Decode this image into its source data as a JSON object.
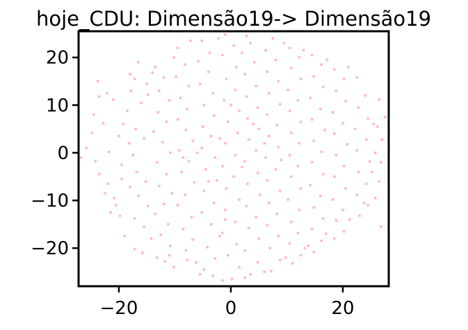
{
  "chart_data": {
    "type": "scatter",
    "title": "hoje_CDU: Dimensão19-> Dimensão19",
    "xlabel": "",
    "ylabel": "",
    "xlim": [
      -27.2,
      28.2
    ],
    "ylim": [
      -28.0,
      25.5
    ],
    "xticks": [
      {
        "value": -20,
        "label": "−20"
      },
      {
        "value": 0,
        "label": "0"
      },
      {
        "value": 20,
        "label": "20"
      }
    ],
    "yticks": [
      {
        "value": 20,
        "label": "20"
      },
      {
        "value": 10,
        "label": "10"
      },
      {
        "value": 0,
        "label": "0"
      },
      {
        "value": -10,
        "label": "−10"
      },
      {
        "value": -20,
        "label": "−20"
      }
    ],
    "grid": false,
    "legend": "none",
    "marker_color": "#ff6b6b",
    "marker_opacity": 0.45,
    "series": [
      {
        "points": [
          [
            -23.8,
            15.0
          ],
          [
            -22.1,
            12.5
          ],
          [
            -23.5,
            11.8
          ],
          [
            -21.0,
            11.2
          ],
          [
            -24.5,
            8.0
          ],
          [
            -22.8,
            6.2
          ],
          [
            -24.8,
            4.2
          ],
          [
            -25.8,
            1.0
          ],
          [
            -26.8,
            -1.0
          ],
          [
            -24.2,
            -1.8
          ],
          [
            -23.5,
            -4.5
          ],
          [
            -22.0,
            -6.5
          ],
          [
            -22.5,
            -8.5
          ],
          [
            -20.8,
            -9.5
          ],
          [
            -21.5,
            -12.5
          ],
          [
            -19.8,
            -13.2
          ],
          [
            -19.0,
            -17.5
          ],
          [
            -17.2,
            -20.2
          ],
          [
            -18.0,
            16.5
          ],
          [
            -17.2,
            15.5
          ],
          [
            -16.5,
            19.0
          ],
          [
            -15.0,
            14.5
          ],
          [
            -14.8,
            12.2
          ],
          [
            -16.0,
            10.5
          ],
          [
            -18.5,
            8.8
          ],
          [
            -19.2,
            6.0
          ],
          [
            -17.0,
            5.0
          ],
          [
            -15.5,
            3.0
          ],
          [
            -18.2,
            2.0
          ],
          [
            -17.5,
            -0.5
          ],
          [
            -19.5,
            -2.5
          ],
          [
            -16.8,
            -4.0
          ],
          [
            -15.2,
            -6.0
          ],
          [
            -18.0,
            -7.2
          ],
          [
            -16.5,
            -9.0
          ],
          [
            -14.8,
            -11.2
          ],
          [
            -17.2,
            -13.8
          ],
          [
            -15.5,
            -15.5
          ],
          [
            -14.2,
            -18.0
          ],
          [
            -15.8,
            -21.0
          ],
          [
            -13.2,
            -22.0
          ],
          [
            -13.5,
            18.0
          ],
          [
            -12.0,
            15.8
          ],
          [
            -12.8,
            13.0
          ],
          [
            -11.0,
            11.0
          ],
          [
            -13.0,
            8.5
          ],
          [
            -11.5,
            6.5
          ],
          [
            -13.8,
            4.5
          ],
          [
            -12.2,
            2.2
          ],
          [
            -10.8,
            0.0
          ],
          [
            -13.2,
            -2.0
          ],
          [
            -11.5,
            -4.5
          ],
          [
            -12.8,
            -7.0
          ],
          [
            -10.5,
            -8.5
          ],
          [
            -12.0,
            -10.8
          ],
          [
            -13.5,
            -12.8
          ],
          [
            -11.2,
            -15.0
          ],
          [
            -12.5,
            -17.2
          ],
          [
            -10.8,
            -19.5
          ],
          [
            -11.8,
            -22.8
          ],
          [
            -10.2,
            -24.0
          ],
          [
            -9.5,
            22.0
          ],
          [
            -8.2,
            18.5
          ],
          [
            -9.8,
            16.0
          ],
          [
            -7.5,
            14.0
          ],
          [
            -9.0,
            11.5
          ],
          [
            -7.8,
            9.2
          ],
          [
            -9.5,
            7.0
          ],
          [
            -8.0,
            4.8
          ],
          [
            -6.8,
            2.5
          ],
          [
            -9.2,
            0.5
          ],
          [
            -7.5,
            -1.8
          ],
          [
            -8.8,
            -4.0
          ],
          [
            -6.5,
            -6.2
          ],
          [
            -8.2,
            -8.8
          ],
          [
            -9.5,
            -11.0
          ],
          [
            -7.0,
            -13.5
          ],
          [
            -8.5,
            -16.0
          ],
          [
            -6.8,
            -18.2
          ],
          [
            -8.0,
            -20.5
          ],
          [
            -6.2,
            -23.0
          ],
          [
            -5.5,
            -25.5
          ],
          [
            -5.2,
            23.5
          ],
          [
            -3.8,
            21.0
          ],
          [
            -5.8,
            19.2
          ],
          [
            -4.0,
            17.0
          ],
          [
            -5.5,
            14.5
          ],
          [
            -3.2,
            12.5
          ],
          [
            -4.8,
            10.0
          ],
          [
            -3.0,
            7.8
          ],
          [
            -5.0,
            5.5
          ],
          [
            -3.5,
            3.5
          ],
          [
            -5.2,
            1.0
          ],
          [
            -2.8,
            -1.0
          ],
          [
            -4.5,
            -3.5
          ],
          [
            -2.5,
            -5.8
          ],
          [
            -4.8,
            -8.0
          ],
          [
            -3.0,
            -10.5
          ],
          [
            -5.2,
            -12.5
          ],
          [
            -3.5,
            -15.0
          ],
          [
            -2.0,
            -17.5
          ],
          [
            -4.2,
            -19.8
          ],
          [
            -2.8,
            -22.2
          ],
          [
            -4.8,
            -24.5
          ],
          [
            -1.5,
            -26.8
          ],
          [
            -1.0,
            24.8
          ],
          [
            0.5,
            22.5
          ],
          [
            -1.5,
            20.5
          ],
          [
            1.0,
            18.0
          ],
          [
            -0.8,
            15.5
          ],
          [
            0.8,
            13.2
          ],
          [
            -1.2,
            11.0
          ],
          [
            1.5,
            8.8
          ],
          [
            -0.5,
            6.5
          ],
          [
            1.2,
            4.2
          ],
          [
            -1.0,
            2.0
          ],
          [
            0.8,
            -0.5
          ],
          [
            -1.5,
            -2.8
          ],
          [
            0.5,
            -5.0
          ],
          [
            -0.8,
            -7.5
          ],
          [
            1.5,
            -9.8
          ],
          [
            -1.0,
            -12.0
          ],
          [
            0.8,
            -14.5
          ],
          [
            -1.5,
            -16.8
          ],
          [
            1.0,
            -19.2
          ],
          [
            -0.5,
            -21.5
          ],
          [
            1.5,
            -24.0
          ],
          [
            0.2,
            -26.5
          ],
          [
            3.5,
            23.0
          ],
          [
            2.0,
            21.0
          ],
          [
            4.2,
            19.0
          ],
          [
            2.5,
            16.5
          ],
          [
            4.5,
            14.0
          ],
          [
            2.8,
            11.8
          ],
          [
            4.8,
            9.5
          ],
          [
            3.0,
            7.2
          ],
          [
            5.0,
            5.0
          ],
          [
            3.2,
            2.8
          ],
          [
            4.5,
            0.5
          ],
          [
            2.5,
            -1.8
          ],
          [
            4.8,
            -4.2
          ],
          [
            3.0,
            -6.5
          ],
          [
            5.2,
            -8.8
          ],
          [
            2.8,
            -11.2
          ],
          [
            4.5,
            -13.5
          ],
          [
            3.2,
            -15.8
          ],
          [
            5.0,
            -18.0
          ],
          [
            2.5,
            -20.5
          ],
          [
            4.8,
            -23.0
          ],
          [
            3.5,
            -25.5
          ],
          [
            7.5,
            24.0
          ],
          [
            6.2,
            21.5
          ],
          [
            8.0,
            19.5
          ],
          [
            6.5,
            17.0
          ],
          [
            8.5,
            15.0
          ],
          [
            6.8,
            12.5
          ],
          [
            8.8,
            10.2
          ],
          [
            6.5,
            8.0
          ],
          [
            8.2,
            5.8
          ],
          [
            6.8,
            3.5
          ],
          [
            8.5,
            1.2
          ],
          [
            6.2,
            -1.0
          ],
          [
            8.0,
            -3.5
          ],
          [
            6.5,
            -5.8
          ],
          [
            8.8,
            -8.0
          ],
          [
            6.8,
            -10.5
          ],
          [
            8.2,
            -12.8
          ],
          [
            6.5,
            -15.2
          ],
          [
            8.5,
            -17.5
          ],
          [
            7.0,
            -20.0
          ],
          [
            8.8,
            -22.5
          ],
          [
            7.2,
            -24.8
          ],
          [
            10.5,
            22.0
          ],
          [
            12.2,
            20.0
          ],
          [
            10.8,
            17.8
          ],
          [
            12.5,
            15.5
          ],
          [
            10.2,
            13.2
          ],
          [
            12.0,
            11.0
          ],
          [
            10.5,
            8.8
          ],
          [
            12.5,
            6.5
          ],
          [
            10.8,
            4.2
          ],
          [
            12.2,
            2.0
          ],
          [
            10.5,
            -0.5
          ],
          [
            12.0,
            -2.8
          ],
          [
            10.8,
            -5.0
          ],
          [
            12.5,
            -7.5
          ],
          [
            10.2,
            -9.8
          ],
          [
            12.2,
            -12.0
          ],
          [
            10.8,
            -14.5
          ],
          [
            12.0,
            -16.8
          ],
          [
            10.5,
            -19.0
          ],
          [
            12.5,
            -21.5
          ],
          [
            11.0,
            -23.2
          ],
          [
            14.5,
            20.5
          ],
          [
            16.2,
            18.5
          ],
          [
            14.8,
            16.0
          ],
          [
            16.5,
            13.8
          ],
          [
            14.2,
            11.5
          ],
          [
            16.0,
            9.2
          ],
          [
            14.5,
            7.0
          ],
          [
            16.8,
            4.8
          ],
          [
            14.8,
            2.5
          ],
          [
            16.2,
            0.2
          ],
          [
            14.5,
            -2.0
          ],
          [
            16.5,
            -4.5
          ],
          [
            14.2,
            -6.8
          ],
          [
            16.0,
            -9.0
          ],
          [
            14.8,
            -11.5
          ],
          [
            16.5,
            -13.8
          ],
          [
            14.5,
            -16.0
          ],
          [
            16.2,
            -18.5
          ],
          [
            14.8,
            -20.8
          ],
          [
            13.8,
            -19.5
          ],
          [
            18.5,
            17.5
          ],
          [
            20.2,
            15.5
          ],
          [
            18.8,
            13.0
          ],
          [
            20.5,
            10.8
          ],
          [
            18.2,
            8.5
          ],
          [
            20.0,
            6.2
          ],
          [
            18.5,
            4.0
          ],
          [
            20.8,
            1.8
          ],
          [
            18.8,
            -0.5
          ],
          [
            20.2,
            -2.8
          ],
          [
            18.5,
            -5.0
          ],
          [
            20.5,
            -7.5
          ],
          [
            18.2,
            -9.8
          ],
          [
            20.0,
            -12.0
          ],
          [
            18.8,
            -14.2
          ],
          [
            20.2,
            -16.5
          ],
          [
            18.5,
            -18.0
          ],
          [
            22.5,
            15.8
          ],
          [
            24.0,
            12.0
          ],
          [
            22.8,
            9.5
          ],
          [
            24.5,
            7.2
          ],
          [
            22.2,
            5.0
          ],
          [
            24.2,
            2.8
          ],
          [
            22.5,
            0.5
          ],
          [
            24.8,
            -1.8
          ],
          [
            22.8,
            -4.0
          ],
          [
            24.2,
            -6.5
          ],
          [
            22.5,
            -8.8
          ],
          [
            24.5,
            -11.0
          ],
          [
            23.0,
            -13.2
          ],
          [
            26.5,
            11.2
          ],
          [
            25.5,
            6.0
          ],
          [
            27.5,
            7.5
          ],
          [
            26.2,
            5.5
          ],
          [
            27.0,
            2.8
          ],
          [
            25.8,
            0.0
          ],
          [
            26.8,
            -2.0
          ],
          [
            25.2,
            -4.0
          ],
          [
            26.5,
            -6.0
          ],
          [
            25.8,
            -9.5
          ],
          [
            26.8,
            -15.5
          ],
          [
            -20.0,
            3.5
          ],
          [
            -21.8,
            0.2
          ],
          [
            -19.5,
            -5.5
          ],
          [
            -20.5,
            -11.0
          ],
          [
            -17.8,
            13.0
          ],
          [
            -14.0,
            16.8
          ],
          [
            -10.2,
            20.0
          ],
          [
            -7.2,
            23.5
          ],
          [
            -2.2,
            24.0
          ],
          [
            2.8,
            24.5
          ],
          [
            9.5,
            23.0
          ],
          [
            13.0,
            21.5
          ],
          [
            17.2,
            19.5
          ],
          [
            21.0,
            18.0
          ],
          [
            -11.0,
            -21.5
          ],
          [
            -7.8,
            -22.5
          ],
          [
            -3.2,
            -25.8
          ],
          [
            2.5,
            -26.2
          ],
          [
            6.0,
            -25.0
          ],
          [
            9.8,
            -22.0
          ],
          [
            13.2,
            -20.0
          ],
          [
            17.0,
            -17.0
          ],
          [
            21.2,
            -14.0
          ],
          [
            23.8,
            -10.5
          ],
          [
            -6.0,
            0.0
          ],
          [
            -2.0,
            3.0
          ],
          [
            2.0,
            -3.0
          ],
          [
            6.0,
            2.0
          ],
          [
            -4.0,
            -6.0
          ],
          [
            4.0,
            6.0
          ],
          [
            0.0,
            10.0
          ],
          [
            -8.5,
            -1.0
          ],
          [
            9.0,
            -1.5
          ],
          [
            -1.0,
            -14.0
          ]
        ]
      }
    ]
  }
}
